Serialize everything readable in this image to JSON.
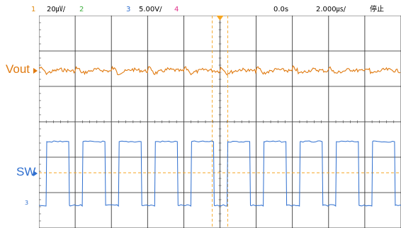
{
  "status_bar": {
    "ch1": {
      "number": "1",
      "scale": "20㎶/",
      "color": "#e08a10"
    },
    "ch2": {
      "number": "2",
      "color": "#3caf3c"
    },
    "ch3": {
      "number": "3",
      "scale": "5.00V/",
      "color": "#2f6fcf"
    },
    "ch4": {
      "number": "4",
      "color": "#e0308a"
    },
    "trigger_delay": "0.0s",
    "timebase": "2.000㎲/",
    "run_state": "停止"
  },
  "waveforms": {
    "vout": {
      "label": "Vout",
      "color": "#e07a10"
    },
    "sw": {
      "label": "SW",
      "color": "#2f6fcf"
    }
  },
  "screen": {
    "grid_divisions_x": 10,
    "grid_divisions_y": 6,
    "grid": true,
    "trigger_marker_color": "#f5a623"
  }
}
